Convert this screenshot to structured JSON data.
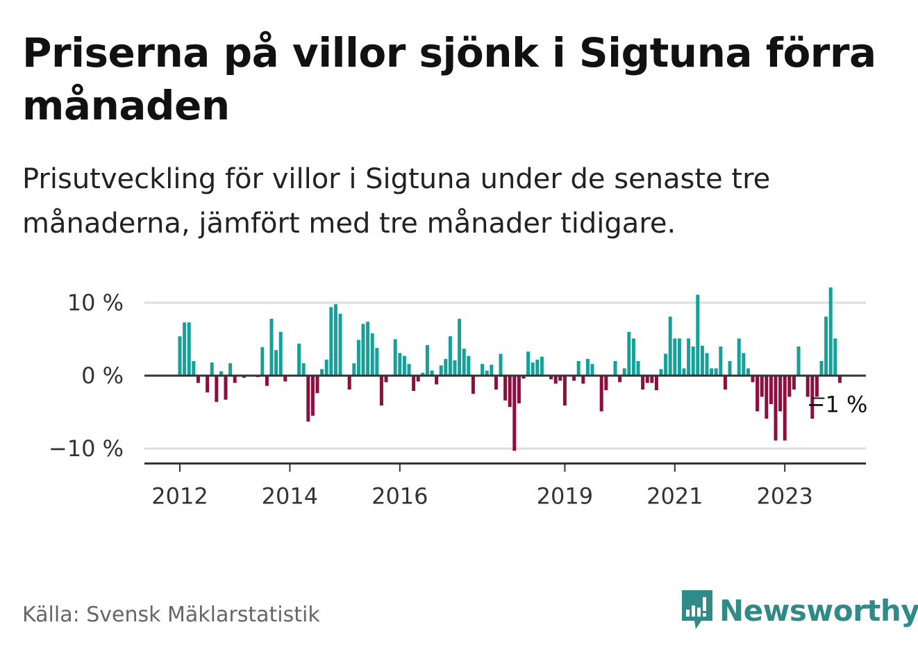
{
  "header": {
    "title": "Priserna på villor sjönk i Sigtuna förra månaden",
    "subtitle": "Prisutveckling för villor i Sigtuna under de senaste tre månaderna, jämfört med tre månader tidigare."
  },
  "footer": {
    "source": "Källa: Svensk Mäklarstatistik",
    "brand": "Newsworthy"
  },
  "colors": {
    "positive": "#13a19a",
    "negative": "#8e0f3f",
    "brand": "#2e8b88",
    "grid": "#dddddd",
    "zero_line": "#333333"
  },
  "chart_data": {
    "type": "bar",
    "title": "Prisutveckling för villor i Sigtuna",
    "xlabel": "",
    "ylabel": "",
    "ylim": [
      -12,
      10
    ],
    "y_ticks": [
      10,
      0,
      -10
    ],
    "y_tick_labels": [
      "10 %",
      "0 %",
      "−10 %"
    ],
    "x_ticks": [
      {
        "index": 0,
        "label": "2012"
      },
      {
        "index": 24,
        "label": "2014"
      },
      {
        "index": 48,
        "label": "2016"
      },
      {
        "index": 84,
        "label": "2019"
      },
      {
        "index": 108,
        "label": "2021"
      },
      {
        "index": 132,
        "label": "2023"
      }
    ],
    "end_label": "−1 %",
    "start": "2012-01",
    "unit": "%",
    "values": [
      5.4,
      7.3,
      7.3,
      2.0,
      -1.0,
      0.0,
      -2.3,
      1.8,
      -3.6,
      0.6,
      -3.3,
      1.7,
      -1.0,
      0.0,
      -0.3,
      0.0,
      0.0,
      -0.2,
      3.9,
      -1.4,
      7.8,
      3.5,
      6.0,
      -0.8,
      0.0,
      0.0,
      4.4,
      1.7,
      -6.3,
      -5.5,
      -2.4,
      0.9,
      2.2,
      9.4,
      9.8,
      8.5,
      0.0,
      -1.9,
      1.7,
      4.9,
      7.1,
      7.4,
      5.8,
      3.8,
      -4.1,
      -0.9,
      0.0,
      5.0,
      3.1,
      2.7,
      1.6,
      -2.1,
      -0.8,
      0.4,
      4.2,
      0.7,
      -1.2,
      1.4,
      2.3,
      5.4,
      2.1,
      7.8,
      3.7,
      2.7,
      -2.5,
      0.0,
      1.6,
      0.7,
      1.5,
      -1.9,
      3.0,
      -3.4,
      -4.3,
      -10.3,
      -3.8,
      -0.4,
      3.3,
      1.8,
      2.2,
      2.6,
      0.0,
      -0.5,
      -1.1,
      -0.7,
      -4.1,
      0.0,
      -0.7,
      2.0,
      -1.1,
      2.3,
      1.6,
      0.0,
      -4.9,
      -2.0,
      0.0,
      2.0,
      -0.9,
      1.0,
      6.0,
      5.1,
      2.0,
      -1.9,
      -1.0,
      -1.0,
      -2.0,
      0.9,
      3.0,
      8.1,
      5.1,
      5.1,
      1.0,
      5.1,
      4.0,
      11.1,
      4.1,
      3.1,
      1.0,
      1.0,
      4.0,
      -1.9,
      2.0,
      0.0,
      5.1,
      3.1,
      1.0,
      -0.9,
      -4.9,
      -2.9,
      -5.9,
      -3.9,
      -8.9,
      -4.9,
      -8.9,
      -2.9,
      -1.9,
      4.0,
      0.0,
      -2.9,
      -5.9,
      -2.9,
      2.0,
      8.1,
      12.1,
      5.1,
      -1.0
    ]
  }
}
